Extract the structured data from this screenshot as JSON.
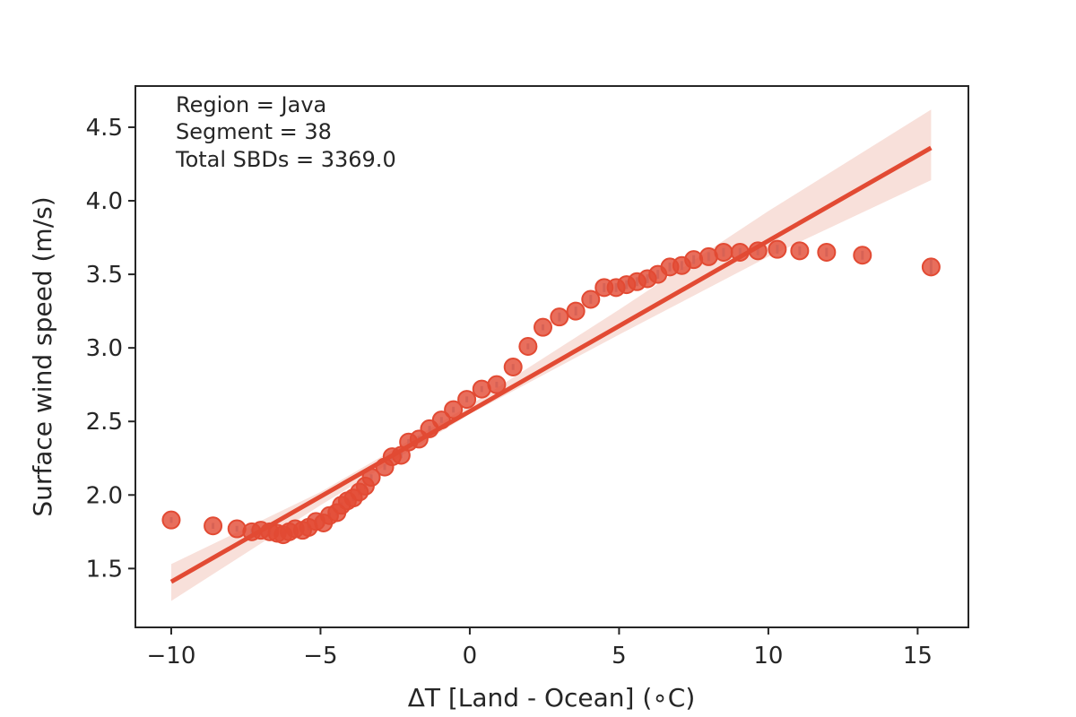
{
  "chart_data": {
    "type": "scatter",
    "title": "",
    "xlabel": "ΔT [Land - Ocean] (∘C)",
    "ylabel": "Surface wind speed (m/s)",
    "xlim": [
      -11.2,
      16.7
    ],
    "ylim": [
      1.1,
      4.78
    ],
    "xticks": [
      -10,
      -5,
      0,
      5,
      10,
      15
    ],
    "xtick_labels": [
      "−10",
      "−5",
      "0",
      "5",
      "10",
      "15"
    ],
    "yticks": [
      1.5,
      2.0,
      2.5,
      3.0,
      3.5,
      4.0,
      4.5
    ],
    "ytick_labels": [
      "1.5",
      "2.0",
      "2.5",
      "3.0",
      "3.5",
      "4.0",
      "4.5"
    ],
    "grid": false,
    "annotations": [
      "Region = Java",
      "Segment = 38",
      "Total SBDs = 3369.0"
    ],
    "colors": {
      "points": "#e24a33",
      "regression": "#e24a33",
      "band": "#f5cfc6",
      "errorbar": "#a9c3dc"
    },
    "points": [
      {
        "x": -10.0,
        "y": 1.83,
        "err": 0.02
      },
      {
        "x": -8.6,
        "y": 1.79,
        "err": 0.02
      },
      {
        "x": -7.8,
        "y": 1.77,
        "err": 0.02
      },
      {
        "x": -7.3,
        "y": 1.75,
        "err": 0.02
      },
      {
        "x": -7.0,
        "y": 1.76,
        "err": 0.02
      },
      {
        "x": -6.7,
        "y": 1.75,
        "err": 0.02
      },
      {
        "x": -6.45,
        "y": 1.74,
        "err": 0.02
      },
      {
        "x": -6.25,
        "y": 1.73,
        "err": 0.02
      },
      {
        "x": -6.05,
        "y": 1.75,
        "err": 0.02
      },
      {
        "x": -5.85,
        "y": 1.77,
        "err": 0.02
      },
      {
        "x": -5.6,
        "y": 1.76,
        "err": 0.02
      },
      {
        "x": -5.4,
        "y": 1.78,
        "err": 0.02
      },
      {
        "x": -5.15,
        "y": 1.82,
        "err": 0.02
      },
      {
        "x": -4.9,
        "y": 1.81,
        "err": 0.02
      },
      {
        "x": -4.7,
        "y": 1.86,
        "err": 0.02
      },
      {
        "x": -4.45,
        "y": 1.88,
        "err": 0.02
      },
      {
        "x": -4.3,
        "y": 1.93,
        "err": 0.02
      },
      {
        "x": -4.1,
        "y": 1.96,
        "err": 0.02
      },
      {
        "x": -3.9,
        "y": 1.98,
        "err": 0.02
      },
      {
        "x": -3.7,
        "y": 2.02,
        "err": 0.02
      },
      {
        "x": -3.5,
        "y": 2.06,
        "err": 0.02
      },
      {
        "x": -3.3,
        "y": 2.12,
        "err": 0.02
      },
      {
        "x": -2.85,
        "y": 2.19,
        "err": 0.02
      },
      {
        "x": -2.6,
        "y": 2.26,
        "err": 0.02
      },
      {
        "x": -2.3,
        "y": 2.27,
        "err": 0.02
      },
      {
        "x": -2.05,
        "y": 2.36,
        "err": 0.02
      },
      {
        "x": -1.7,
        "y": 2.38,
        "err": 0.02
      },
      {
        "x": -1.35,
        "y": 2.45,
        "err": 0.02
      },
      {
        "x": -0.95,
        "y": 2.51,
        "err": 0.02
      },
      {
        "x": -0.55,
        "y": 2.58,
        "err": 0.02
      },
      {
        "x": -0.1,
        "y": 2.65,
        "err": 0.02
      },
      {
        "x": 0.4,
        "y": 2.72,
        "err": 0.02
      },
      {
        "x": 0.9,
        "y": 2.75,
        "err": 0.02
      },
      {
        "x": 1.45,
        "y": 2.87,
        "err": 0.02
      },
      {
        "x": 1.95,
        "y": 3.01,
        "err": 0.02
      },
      {
        "x": 2.45,
        "y": 3.14,
        "err": 0.02
      },
      {
        "x": 3.0,
        "y": 3.21,
        "err": 0.03
      },
      {
        "x": 3.55,
        "y": 3.25,
        "err": 0.03
      },
      {
        "x": 4.05,
        "y": 3.33,
        "err": 0.03
      },
      {
        "x": 4.5,
        "y": 3.41,
        "err": 0.03
      },
      {
        "x": 4.9,
        "y": 3.41,
        "err": 0.03
      },
      {
        "x": 5.25,
        "y": 3.43,
        "err": 0.03
      },
      {
        "x": 5.6,
        "y": 3.45,
        "err": 0.03
      },
      {
        "x": 5.95,
        "y": 3.47,
        "err": 0.03
      },
      {
        "x": 6.3,
        "y": 3.5,
        "err": 0.03
      },
      {
        "x": 6.7,
        "y": 3.55,
        "err": 0.03
      },
      {
        "x": 7.1,
        "y": 3.56,
        "err": 0.03
      },
      {
        "x": 7.5,
        "y": 3.6,
        "err": 0.03
      },
      {
        "x": 8.0,
        "y": 3.62,
        "err": 0.03
      },
      {
        "x": 8.5,
        "y": 3.65,
        "err": 0.03
      },
      {
        "x": 9.05,
        "y": 3.65,
        "err": 0.03
      },
      {
        "x": 9.65,
        "y": 3.66,
        "err": 0.03
      },
      {
        "x": 10.3,
        "y": 3.67,
        "err": 0.03
      },
      {
        "x": 11.05,
        "y": 3.66,
        "err": 0.03
      },
      {
        "x": 11.95,
        "y": 3.65,
        "err": 0.03
      },
      {
        "x": 13.15,
        "y": 3.63,
        "err": 0.03
      },
      {
        "x": 15.45,
        "y": 3.55,
        "err": 0.05
      }
    ],
    "regression": {
      "x": [
        -10.0,
        15.45
      ],
      "y": [
        1.41,
        4.36
      ],
      "band_x": [
        -10.0,
        -5.0,
        0.0,
        5.0,
        10.0,
        15.45
      ],
      "band_lower": [
        1.28,
        1.93,
        2.55,
        3.09,
        3.62,
        4.14
      ],
      "band_upper": [
        1.53,
        2.02,
        2.61,
        3.26,
        3.93,
        4.62
      ]
    }
  }
}
